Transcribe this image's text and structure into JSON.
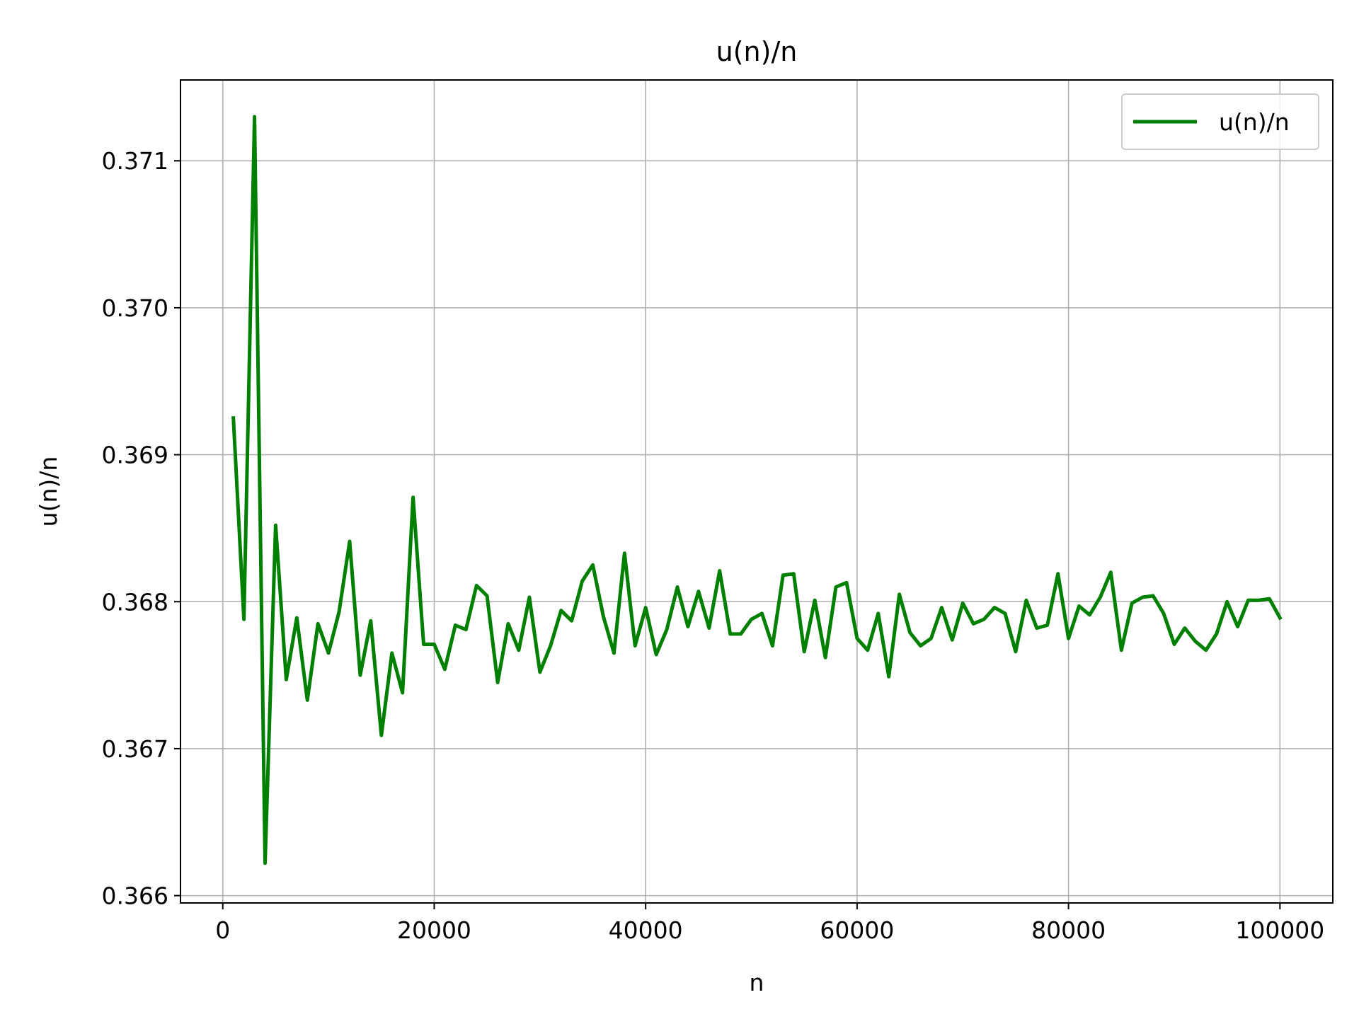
{
  "chart_data": {
    "type": "line",
    "title": "u(n)/n",
    "xlabel": "n",
    "ylabel": "u(n)/n",
    "xlim": [
      -4000,
      105000
    ],
    "ylim": [
      0.36595,
      0.37155
    ],
    "xticks": [
      0,
      20000,
      40000,
      60000,
      80000,
      100000
    ],
    "xtick_labels": [
      "0",
      "20000",
      "40000",
      "60000",
      "80000",
      "100000"
    ],
    "yticks": [
      0.366,
      0.367,
      0.368,
      0.369,
      0.37,
      0.371
    ],
    "ytick_labels": [
      "0.366",
      "0.367",
      "0.368",
      "0.369",
      "0.370",
      "0.371"
    ],
    "grid": true,
    "legend": {
      "position": "top-right",
      "entries": [
        "u(n)/n"
      ]
    },
    "series": [
      {
        "name": "u(n)/n",
        "color": "#008000",
        "x": [
          1000,
          2000,
          3000,
          4000,
          5000,
          6000,
          7000,
          8000,
          9000,
          10000,
          11000,
          12000,
          13000,
          14000,
          15000,
          16000,
          17000,
          18000,
          19000,
          20000,
          21000,
          22000,
          23000,
          24000,
          25000,
          26000,
          27000,
          28000,
          29000,
          30000,
          31000,
          32000,
          33000,
          34000,
          35000,
          36000,
          37000,
          38000,
          39000,
          40000,
          41000,
          42000,
          43000,
          44000,
          45000,
          46000,
          47000,
          48000,
          49000,
          50000,
          51000,
          52000,
          53000,
          54000,
          55000,
          56000,
          57000,
          58000,
          59000,
          60000,
          61000,
          62000,
          63000,
          64000,
          65000,
          66000,
          67000,
          68000,
          69000,
          70000,
          71000,
          72000,
          73000,
          74000,
          75000,
          76000,
          77000,
          78000,
          79000,
          80000,
          81000,
          82000,
          83000,
          84000,
          85000,
          86000,
          87000,
          88000,
          89000,
          90000,
          91000,
          92000,
          93000,
          94000,
          95000,
          96000,
          97000,
          98000,
          99000,
          100000
        ],
        "y": [
          0.36925,
          0.36788,
          0.3713,
          0.36622,
          0.36852,
          0.36747,
          0.36789,
          0.36733,
          0.36785,
          0.36765,
          0.36793,
          0.36841,
          0.3675,
          0.36787,
          0.36709,
          0.36765,
          0.36738,
          0.36871,
          0.36771,
          0.36771,
          0.36754,
          0.36784,
          0.36781,
          0.36811,
          0.36804,
          0.36745,
          0.36785,
          0.36767,
          0.36803,
          0.36752,
          0.3677,
          0.36794,
          0.36787,
          0.36814,
          0.36825,
          0.3679,
          0.36765,
          0.36833,
          0.3677,
          0.36796,
          0.36764,
          0.36781,
          0.3681,
          0.36783,
          0.36807,
          0.36782,
          0.36821,
          0.36778,
          0.36778,
          0.36788,
          0.36792,
          0.3677,
          0.36818,
          0.36819,
          0.36766,
          0.36801,
          0.36762,
          0.3681,
          0.36813,
          0.36775,
          0.36767,
          0.36792,
          0.36749,
          0.36805,
          0.36779,
          0.3677,
          0.36775,
          0.36796,
          0.36774,
          0.36799,
          0.36785,
          0.36788,
          0.36796,
          0.36792,
          0.36766,
          0.36801,
          0.36782,
          0.36784,
          0.36819,
          0.36775,
          0.36797,
          0.36791,
          0.36803,
          0.3682,
          0.36767,
          0.36799,
          0.36803,
          0.36804,
          0.36792,
          0.36771,
          0.36782,
          0.36773,
          0.36767,
          0.36778,
          0.368,
          0.36783,
          0.36801,
          0.36801,
          0.36802,
          0.36789
        ]
      }
    ]
  }
}
